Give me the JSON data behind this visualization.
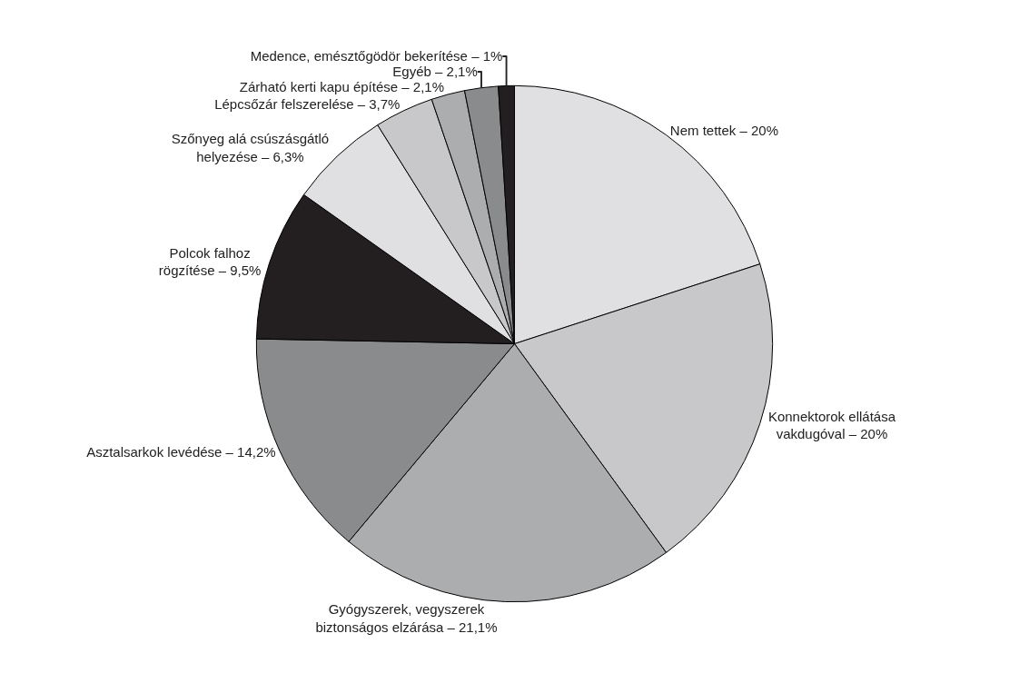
{
  "chart_data": {
    "type": "pie",
    "categories": [
      "Nem tettek – 20%",
      "Konnektorok ellátása\nvakdugóval – 20%",
      "Gyógyszerek, vegyszerek\nbiztonságos elzárása – 21,1%",
      "Asztalsarkok levédése – 14,2%",
      "Polcok falhoz\nrögzítése – 9,5%",
      "Szőnyeg alá csúszásgátló\nhelyezése – 6,3%",
      "Lépcsőzár felszerelése – 3,7%",
      "Zárható kerti kapu építése – 2,1%",
      "Egyéb – 2,1%",
      "Medence, emésztőgödör bekerítése – 1%"
    ],
    "values": [
      20,
      20,
      21.1,
      14.2,
      9.5,
      6.3,
      3.7,
      2.1,
      2.1,
      1
    ],
    "colors": [
      "#e0e0e2",
      "#c8c8ca",
      "#acadaf",
      "#8a8b8d",
      "#231f20",
      "#e0e0e2",
      "#c8c8ca",
      "#acadaf",
      "#8a8b8d",
      "#231f20"
    ],
    "legend": false
  }
}
